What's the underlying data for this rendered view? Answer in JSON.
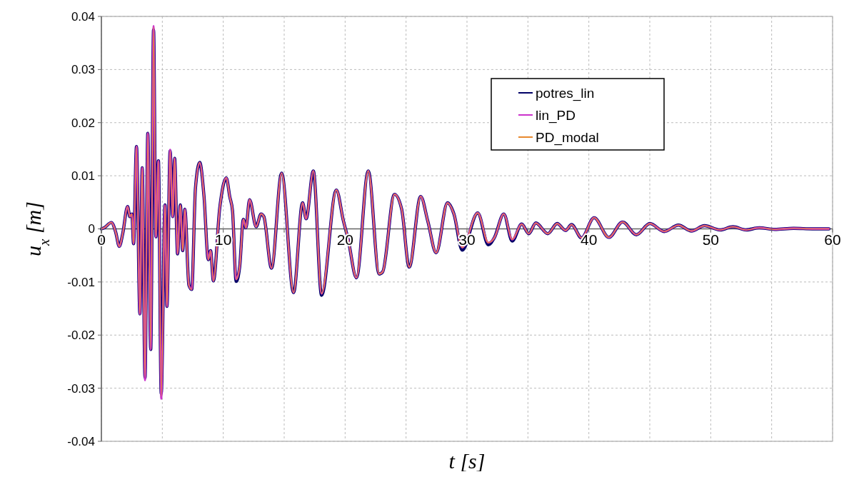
{
  "chart_data": {
    "type": "line",
    "xlabel": "t [s]",
    "ylabel": "u$_{x}$ [m]",
    "xlim": [
      0,
      60
    ],
    "xticks": [
      0,
      {
        "value": 5,
        "label": null
      },
      10,
      {
        "value": 15,
        "label": null
      },
      20,
      {
        "value": 25,
        "label": null
      },
      30,
      {
        "value": 35,
        "label": null
      },
      40,
      {
        "value": 45,
        "label": null
      },
      50,
      {
        "value": 55,
        "label": null
      },
      60
    ],
    "ylim": [
      -0.04,
      0.04
    ],
    "yticks": [
      -0.04,
      -0.03,
      -0.02,
      -0.01,
      0,
      0.01,
      0.02,
      0.03,
      0.04
    ],
    "grid": true,
    "legend": "top right",
    "marker": "none",
    "line_style": "solid",
    "x": [
      0,
      0.23,
      0.82,
      1.17,
      1.47,
      1.75,
      2.15,
      2.34,
      2.5,
      2.64,
      2.88,
      3.16,
      3.35,
      3.58,
      3.81,
      4.05,
      4.28,
      4.47,
      4.68,
      4.91,
      5.22,
      5.38,
      5.64,
      5.85,
      6.01,
      6.25,
      6.48,
      6.67,
      6.85,
      7.18,
      7.41,
      7.72,
      8.07,
      8.42,
      8.77,
      8.96,
      9.19,
      9.71,
      10.25,
      10.53,
      10.76,
      11.06,
      11.35,
      11.65,
      11.86,
      12.16,
      12.7,
      13.1,
      13.33,
      13.96,
      14.79,
      15.77,
      16.51,
      16.8,
      17.39,
      18.07,
      19.28,
      19.86,
      20.25,
      20.93,
      21.9,
      22.79,
      23.08,
      24.05,
      24.64,
      25.26,
      26.2,
      26.78,
      27.47,
      28.4,
      28.93,
      29.61,
      30.88,
      31.75,
      32.24,
      33.02,
      33.71,
      34.49,
      35.07,
      35.65,
      36.63,
      37.4,
      38.09,
      38.58,
      39.4,
      40.43,
      41.64,
      42.77,
      43.9,
      45.01,
      46.18,
      47.35,
      48.42,
      49.49,
      50.76,
      51.83,
      52.9,
      53.98,
      55.25,
      56.8,
      58.36,
      59.7
    ],
    "series": [
      {
        "name": "potres_lin",
        "color": "#000066",
        "values": [
          0,
          0.0002,
          0.0012,
          -0.0006,
          -0.0033,
          -0.0009,
          0.0042,
          0.0023,
          0.0028,
          -0.0028,
          0.0155,
          -0.016,
          0.0115,
          -0.028,
          0.018,
          -0.0227,
          0.0375,
          -0.0015,
          0.0128,
          -0.031,
          0.0045,
          -0.0146,
          0.0147,
          0.0023,
          0.0133,
          -0.0047,
          0.0045,
          -0.0041,
          0.0037,
          -0.0106,
          -0.0114,
          0.0077,
          0.0125,
          0.0061,
          -0.0058,
          -0.0041,
          -0.0098,
          0.0039,
          0.0096,
          0.0061,
          0.0034,
          -0.0099,
          -0.0071,
          0.0018,
          0.0002,
          0.0055,
          0.0004,
          0.0028,
          0.0023,
          -0.0074,
          0.0105,
          -0.012,
          0.0049,
          0.0019,
          0.0109,
          -0.0125,
          0.0073,
          0.0015,
          -0.002,
          -0.0092,
          0.0109,
          -0.0085,
          -0.0081,
          0.0065,
          0.0037,
          -0.0072,
          0.0061,
          0.0015,
          -0.0045,
          0.0049,
          0.0028,
          -0.004,
          0.003,
          -0.003,
          -0.0017,
          0.0028,
          -0.0023,
          0.0009,
          -0.0009,
          0.0011,
          -0.0009,
          0.001,
          -0.0003,
          0.0008,
          -0.0017,
          0.0021,
          -0.0016,
          0.0013,
          -0.0011,
          0.001,
          -0.0005,
          0.0007,
          -0.0004,
          0.0006,
          -0.0002,
          0.0004,
          -0.0002,
          0.0002,
          -0.0001,
          0.0001,
          0,
          0
        ]
      },
      {
        "name": "lin_PD",
        "color": "#cc33cc",
        "values": [
          0,
          0.0002,
          0.0012,
          -0.0006,
          -0.0033,
          -0.0009,
          0.0042,
          0.0023,
          0.0028,
          -0.0028,
          0.0155,
          -0.016,
          0.0115,
          -0.0285,
          0.018,
          -0.0227,
          0.0382,
          -0.0015,
          0.0128,
          -0.032,
          0.0045,
          -0.0146,
          0.0149,
          0.0023,
          0.0133,
          -0.0047,
          0.0045,
          -0.0041,
          0.0037,
          -0.0106,
          -0.0114,
          0.0077,
          0.0125,
          0.0061,
          -0.0058,
          -0.0041,
          -0.0098,
          0.0039,
          0.0096,
          0.0061,
          0.0034,
          -0.0095,
          -0.0071,
          0.0018,
          0.0002,
          0.0055,
          0.0004,
          0.0028,
          0.0023,
          -0.0074,
          0.0105,
          -0.012,
          0.0049,
          0.0019,
          0.0109,
          -0.0122,
          0.0073,
          0.0015,
          -0.002,
          -0.0092,
          0.0109,
          -0.0085,
          -0.0081,
          0.0065,
          0.0037,
          -0.0072,
          0.0061,
          0.0015,
          -0.0045,
          0.0049,
          0.0028,
          -0.0035,
          0.003,
          -0.0026,
          -0.0017,
          0.0028,
          -0.002,
          0.0009,
          -0.0009,
          0.0011,
          -0.0009,
          0.001,
          -0.0003,
          0.0008,
          -0.0017,
          0.0021,
          -0.0016,
          0.0013,
          -0.0011,
          0.001,
          -0.0005,
          0.0007,
          -0.0004,
          0.0006,
          -0.0002,
          0.0004,
          -0.0002,
          0.0002,
          -0.0001,
          0.0001,
          0,
          0
        ]
      },
      {
        "name": "PD_modal",
        "color": "#e8892e",
        "values": [
          0,
          0.0002,
          0.0012,
          -0.0006,
          -0.0033,
          -0.0009,
          0.0042,
          0.0023,
          0.0028,
          -0.0028,
          0.0155,
          -0.016,
          0.0115,
          -0.028,
          0.018,
          -0.0227,
          0.038,
          -0.0015,
          0.0128,
          -0.0316,
          0.0045,
          -0.0146,
          0.0147,
          0.0023,
          0.0133,
          -0.0047,
          0.0045,
          -0.0041,
          0.0037,
          -0.0106,
          -0.0114,
          0.0077,
          0.0125,
          0.0061,
          -0.0058,
          -0.0041,
          -0.0098,
          0.0039,
          0.0096,
          0.0061,
          0.0034,
          -0.0095,
          -0.0071,
          0.0018,
          0.0002,
          0.0055,
          0.0004,
          0.0028,
          0.0023,
          -0.0074,
          0.0105,
          -0.012,
          0.0049,
          0.0019,
          0.0109,
          -0.0122,
          0.0073,
          0.0015,
          -0.002,
          -0.0092,
          0.0109,
          -0.0085,
          -0.0081,
          0.0065,
          0.0037,
          -0.0072,
          0.0061,
          0.0015,
          -0.0045,
          0.0049,
          0.0028,
          -0.0035,
          0.003,
          -0.0026,
          -0.0017,
          0.0028,
          -0.002,
          0.0009,
          -0.0009,
          0.0011,
          -0.0009,
          0.001,
          -0.0003,
          0.0008,
          -0.0017,
          0.0021,
          -0.0016,
          0.0013,
          -0.0011,
          0.001,
          -0.0005,
          0.0007,
          -0.0004,
          0.0006,
          -0.0002,
          0.0004,
          -0.0002,
          0.0002,
          -0.0001,
          0.0001,
          0,
          0
        ]
      }
    ]
  }
}
